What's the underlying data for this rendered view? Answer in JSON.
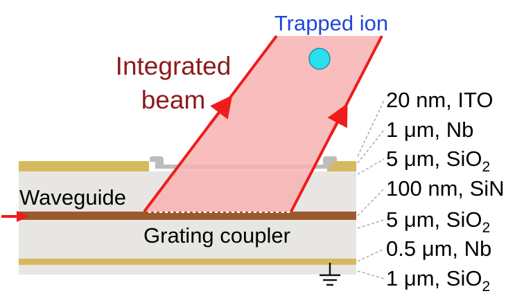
{
  "labels": {
    "trapped_ion": "Trapped ion",
    "integrated_beam_line1": "Integrated",
    "integrated_beam_line2": "beam",
    "waveguide": "Waveguide",
    "grating_coupler": "Grating coupler"
  },
  "layers": [
    {
      "thickness": "20 nm",
      "material": "ITO",
      "subscript": ""
    },
    {
      "thickness": "1 μm",
      "material": "Nb",
      "subscript": ""
    },
    {
      "thickness": "5 μm",
      "material": "SiO",
      "subscript": "2"
    },
    {
      "thickness": "100 nm",
      "material": "SiN",
      "subscript": ""
    },
    {
      "thickness": "5 μm",
      "material": "SiO",
      "subscript": "2"
    },
    {
      "thickness": "0.5 μm",
      "material": "Nb",
      "subscript": ""
    },
    {
      "thickness": "1 μm",
      "material": "SiO",
      "subscript": "2"
    }
  ],
  "colors": {
    "beam_edge": "#ee1c1c",
    "beam_fill": "#f7b2b2",
    "ion_fill": "#29e0f0",
    "ion_label": "#1e47d8",
    "beam_label": "#8b1a1a",
    "oxide": "#e8e6e3",
    "niobium": "#d6b95e",
    "waveguide": "#9a5a2e",
    "ito": "#bdbdbd",
    "input_arrow": "#ee1c1c",
    "leader": "#a9a9a9",
    "ground": "#111111"
  }
}
